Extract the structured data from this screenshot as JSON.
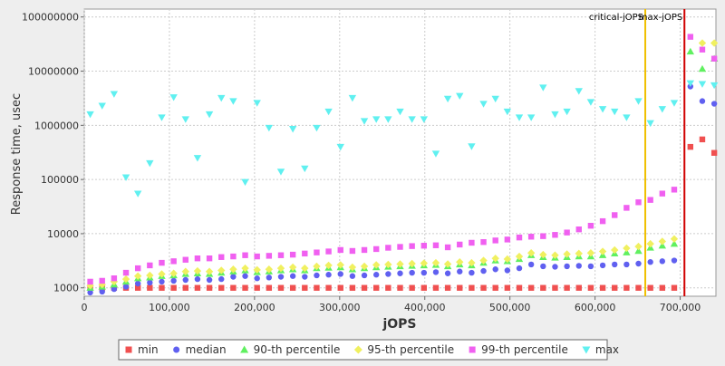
{
  "chart_data": {
    "type": "scatter",
    "x_label": "jOPS",
    "y_label": "Response time, usec",
    "log_y": true,
    "grid": true,
    "legend": "bottom",
    "xlim": [
      0,
      742000
    ],
    "ylim": [
      700,
      140000000
    ],
    "xticks": [
      0,
      {
        "value": 100000,
        "label": "100,000"
      },
      {
        "value": 200000,
        "label": "200,000"
      },
      {
        "value": 300000,
        "label": "300,000"
      },
      {
        "value": 400000,
        "label": "400,000"
      },
      {
        "value": 500000,
        "label": "500,000"
      },
      {
        "value": 600000,
        "label": "600,000"
      },
      {
        "value": 700000,
        "label": "700,000"
      }
    ],
    "yticks": [
      1000,
      10000,
      100000,
      1000000,
      10000000,
      100000000
    ],
    "markers": [
      {
        "label": "critical-jOPS",
        "value": 659000,
        "color": "#f0c000"
      },
      {
        "label": "max-jOPS",
        "value": 705000,
        "color": "#d00000"
      }
    ],
    "x": [
      7000,
      21000,
      35000,
      49000,
      63000,
      77000,
      91000,
      105000,
      119000,
      133000,
      147000,
      161000,
      175000,
      189000,
      203000,
      217000,
      231000,
      245000,
      259000,
      273000,
      287000,
      301000,
      315000,
      329000,
      343000,
      357000,
      371000,
      385000,
      399000,
      413000,
      427000,
      441000,
      455000,
      469000,
      483000,
      497000,
      511000,
      525000,
      539000,
      553000,
      567000,
      581000,
      595000,
      609000,
      623000,
      637000,
      651000,
      665000,
      679000,
      693000,
      712000,
      726000,
      740000
    ],
    "series": [
      {
        "name": "min",
        "color": "#f05050",
        "marker": "square",
        "values": [
          1000,
          1000,
          1000,
          1000,
          1000,
          1000,
          1000,
          1000,
          1000,
          1000,
          1000,
          1000,
          1000,
          1000,
          1000,
          1000,
          1000,
          1000,
          1000,
          1000,
          1000,
          1000,
          1000,
          1000,
          1000,
          1000,
          1000,
          1000,
          1000,
          1000,
          1000,
          1000,
          1000,
          1000,
          1000,
          1000,
          1000,
          1000,
          1000,
          1000,
          1000,
          1000,
          1000,
          1000,
          1000,
          1000,
          1000,
          1000,
          1000,
          1000,
          400000,
          550000,
          310000
        ]
      },
      {
        "name": "median",
        "color": "#6060f0",
        "marker": "circle",
        "values": [
          820,
          850,
          950,
          1050,
          1200,
          1250,
          1300,
          1350,
          1400,
          1450,
          1400,
          1450,
          1600,
          1650,
          1500,
          1550,
          1600,
          1650,
          1600,
          1700,
          1750,
          1800,
          1650,
          1700,
          1750,
          1800,
          1850,
          1900,
          1900,
          1950,
          1850,
          2000,
          1900,
          2050,
          2200,
          2100,
          2300,
          2700,
          2500,
          2450,
          2500,
          2550,
          2500,
          2600,
          2700,
          2700,
          2800,
          3000,
          3100,
          3200,
          5200000,
          2800000,
          2500000
        ]
      },
      {
        "name": "90-th percentile",
        "color": "#60f060",
        "marker": "triangle",
        "values": [
          1000,
          1050,
          1150,
          1300,
          1500,
          1550,
          1650,
          1700,
          1800,
          1850,
          1800,
          1900,
          2000,
          2100,
          1950,
          2000,
          2100,
          2200,
          2100,
          2300,
          2350,
          2400,
          2200,
          2300,
          2400,
          2450,
          2500,
          2550,
          2600,
          2650,
          2500,
          2700,
          2600,
          2900,
          3200,
          3100,
          3400,
          4000,
          3700,
          3600,
          3700,
          3800,
          3800,
          4000,
          4300,
          4500,
          4800,
          5500,
          6000,
          6500,
          23000000,
          11000000,
          17000000
        ]
      },
      {
        "name": "95-th percentile",
        "color": "#f0f060",
        "marker": "diamond",
        "values": [
          1100,
          1150,
          1300,
          1450,
          1650,
          1700,
          1800,
          1850,
          2000,
          2050,
          2000,
          2100,
          2200,
          2300,
          2150,
          2200,
          2300,
          2400,
          2300,
          2500,
          2600,
          2650,
          2400,
          2500,
          2650,
          2700,
          2750,
          2800,
          2850,
          2900,
          2750,
          3000,
          2900,
          3200,
          3500,
          3400,
          3800,
          4400,
          4100,
          4000,
          4200,
          4300,
          4400,
          4700,
          5000,
          5400,
          5800,
          6500,
          7200,
          8000,
          null,
          33000000,
          33000000
        ]
      },
      {
        "name": "99-th percentile",
        "color": "#f060f0",
        "marker": "square",
        "values": [
          1300,
          1350,
          1500,
          1900,
          2300,
          2600,
          2900,
          3100,
          3300,
          3500,
          3500,
          3700,
          3800,
          4000,
          3800,
          3900,
          4000,
          4100,
          4300,
          4500,
          4700,
          5000,
          4800,
          5000,
          5200,
          5500,
          5700,
          5900,
          6000,
          6100,
          5600,
          6300,
          6800,
          7000,
          7500,
          7800,
          8500,
          8800,
          9000,
          9500,
          10500,
          12000,
          14000,
          17000,
          22000,
          30000,
          38000,
          42000,
          55000,
          65000,
          43000000,
          25000000,
          17000000
        ]
      },
      {
        "name": "max",
        "color": "#60f0f0",
        "marker": "triangle-down",
        "values": [
          1600000,
          2300000,
          3800000,
          110000,
          55000,
          200000,
          1400000,
          3300000,
          1300000,
          250000,
          1600000,
          3200000,
          2800000,
          90000,
          2600000,
          900000,
          140000,
          860000,
          160000,
          900000,
          1800000,
          400000,
          3200000,
          1200000,
          1300000,
          1300000,
          1800000,
          1300000,
          1300000,
          300000,
          3100000,
          3500000,
          410000,
          2500000,
          3100000,
          1800000,
          1400000,
          1400000,
          5000000,
          1600000,
          1800000,
          4300000,
          2700000,
          2000000,
          1800000,
          1400000,
          2800000,
          1100000,
          2000000,
          2600000,
          6000000,
          5800000,
          5500000
        ]
      }
    ]
  }
}
